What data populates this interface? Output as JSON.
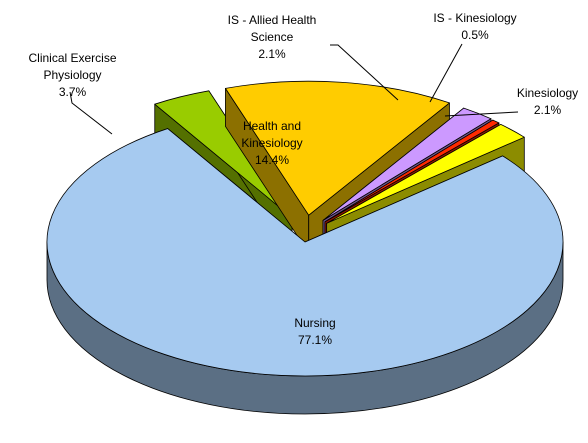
{
  "chart_data": {
    "type": "pie3d",
    "categories": [
      "Nursing",
      "Clinical Exercise Physiology",
      "Health and Kinesiology",
      "IS - Allied Health Science",
      "IS - Kinesiology",
      "Kinesiology"
    ],
    "values": [
      77.1,
      3.7,
      14.4,
      2.1,
      0.5,
      2.1
    ],
    "value_labels": [
      "77.1%",
      "3.7%",
      "14.4%",
      "2.1%",
      "0.5%",
      "2.1%"
    ],
    "colors": [
      "#a6caf0",
      "#99cc00",
      "#ffcc00",
      "#cc99ff",
      "#ff2a00",
      "#ffff00"
    ]
  }
}
